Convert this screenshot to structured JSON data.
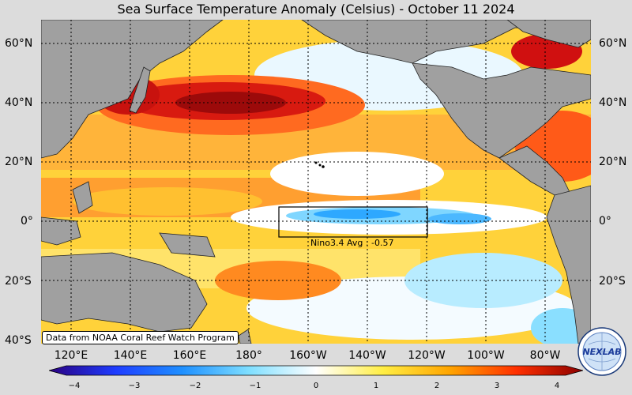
{
  "title": "Sea Surface Temperature Anomaly (Celsius) - October 11 2024",
  "lat_labels": [
    "60°N",
    "40°N",
    "20°N",
    "0°",
    "20°S",
    "40°S"
  ],
  "lon_labels": [
    "120°E",
    "140°E",
    "160°E",
    "180°",
    "160°W",
    "140°W",
    "120°W",
    "100°W",
    "80°W"
  ],
  "nino_label": "Nino3.4 Avg : -0.57",
  "credit": "Data from NOAA Coral Reef Watch Program",
  "colorbar": {
    "ticks": [
      "−4",
      "−3",
      "−2",
      "−1",
      "0",
      "1",
      "2",
      "3",
      "4"
    ],
    "colors": [
      "#2a0080",
      "#1e3cff",
      "#1e90ff",
      "#7fdfff",
      "#ffffff",
      "#ffee44",
      "#ffa500",
      "#ff3000",
      "#8b0000"
    ]
  },
  "logo_text": "NEXLAB",
  "colors": {
    "land": "#a0a0a0",
    "background": "#dcdcdc"
  }
}
